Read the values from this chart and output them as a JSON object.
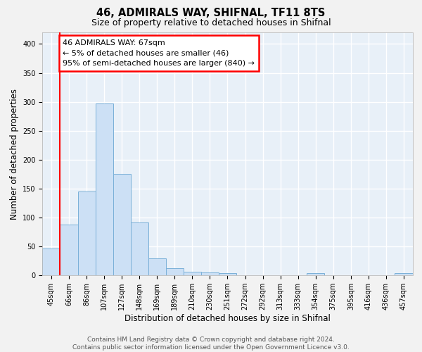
{
  "title": "46, ADMIRALS WAY, SHIFNAL, TF11 8TS",
  "subtitle": "Size of property relative to detached houses in Shifnal",
  "xlabel": "Distribution of detached houses by size in Shifnal",
  "ylabel": "Number of detached properties",
  "bar_color": "#cce0f5",
  "bar_edge_color": "#7ab0d8",
  "categories": [
    "45sqm",
    "66sqm",
    "86sqm",
    "107sqm",
    "127sqm",
    "148sqm",
    "169sqm",
    "189sqm",
    "210sqm",
    "230sqm",
    "251sqm",
    "272sqm",
    "292sqm",
    "313sqm",
    "333sqm",
    "354sqm",
    "375sqm",
    "395sqm",
    "416sqm",
    "436sqm",
    "457sqm"
  ],
  "values": [
    47,
    88,
    145,
    297,
    175,
    91,
    29,
    12,
    6,
    5,
    4,
    0,
    0,
    0,
    0,
    4,
    0,
    0,
    0,
    0,
    4
  ],
  "ylim": [
    0,
    420
  ],
  "yticks": [
    0,
    50,
    100,
    150,
    200,
    250,
    300,
    350,
    400
  ],
  "vline_x": 0.5,
  "annotation_line1": "46 ADMIRALS WAY: 67sqm",
  "annotation_line2": "← 5% of detached houses are smaller (46)",
  "annotation_line3": "95% of semi-detached houses are larger (840) →",
  "footer_line1": "Contains HM Land Registry data © Crown copyright and database right 2024.",
  "footer_line2": "Contains public sector information licensed under the Open Government Licence v3.0.",
  "plot_bg_color": "#e8f0f8",
  "fig_bg_color": "#f2f2f2",
  "grid_color": "#ffffff",
  "title_fontsize": 10.5,
  "subtitle_fontsize": 9,
  "axis_label_fontsize": 8.5,
  "tick_fontsize": 7,
  "annotation_fontsize": 8,
  "footer_fontsize": 6.5
}
